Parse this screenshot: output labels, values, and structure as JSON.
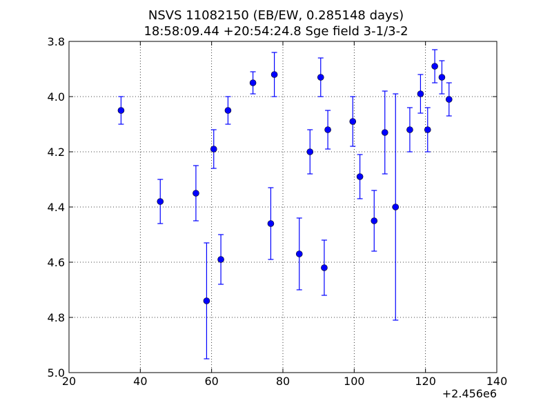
{
  "chart_data": {
    "type": "scatter",
    "title": "NSVS 11082150 (EB/EW, 0.285148 days)",
    "subtitle": "18:58:09.44 +20:54:24.8 Sge field 3-1/3-2",
    "xlabel": "",
    "ylabel": "",
    "x_offset_label": "+2.456e6",
    "xlim": [
      20,
      140
    ],
    "ylim": [
      5.0,
      3.8
    ],
    "y_inverted": true,
    "grid": true,
    "xticks": [
      "20",
      "40",
      "60",
      "80",
      "100",
      "120",
      "140"
    ],
    "yticks": [
      "3.8",
      "4.0",
      "4.2",
      "4.4",
      "4.6",
      "4.8",
      "5.0"
    ],
    "marker_color": "#0000ff",
    "points": [
      {
        "x": 34.6,
        "y": 4.05,
        "err": 0.05
      },
      {
        "x": 45.6,
        "y": 4.38,
        "err": 0.08
      },
      {
        "x": 55.6,
        "y": 4.35,
        "err": 0.1
      },
      {
        "x": 58.6,
        "y": 4.74,
        "err": 0.21
      },
      {
        "x": 60.6,
        "y": 4.19,
        "err": 0.07
      },
      {
        "x": 62.6,
        "y": 4.59,
        "err": 0.09
      },
      {
        "x": 64.6,
        "y": 4.05,
        "err": 0.05
      },
      {
        "x": 71.6,
        "y": 3.95,
        "err": 0.04
      },
      {
        "x": 76.6,
        "y": 4.46,
        "err": 0.13
      },
      {
        "x": 77.6,
        "y": 3.92,
        "err": 0.08
      },
      {
        "x": 84.6,
        "y": 4.57,
        "err": 0.13
      },
      {
        "x": 87.6,
        "y": 4.2,
        "err": 0.08
      },
      {
        "x": 90.6,
        "y": 3.93,
        "err": 0.07
      },
      {
        "x": 91.6,
        "y": 4.62,
        "err": 0.1
      },
      {
        "x": 92.6,
        "y": 4.12,
        "err": 0.07
      },
      {
        "x": 99.6,
        "y": 4.09,
        "err": 0.09
      },
      {
        "x": 101.6,
        "y": 4.29,
        "err": 0.08
      },
      {
        "x": 105.6,
        "y": 4.45,
        "err": 0.11
      },
      {
        "x": 108.6,
        "y": 4.13,
        "err": 0.15
      },
      {
        "x": 111.6,
        "y": 4.4,
        "err": 0.41
      },
      {
        "x": 115.6,
        "y": 4.12,
        "err": 0.08
      },
      {
        "x": 118.6,
        "y": 3.99,
        "err": 0.07
      },
      {
        "x": 120.6,
        "y": 4.12,
        "err": 0.08
      },
      {
        "x": 122.6,
        "y": 3.89,
        "err": 0.06
      },
      {
        "x": 124.6,
        "y": 3.93,
        "err": 0.06
      },
      {
        "x": 126.6,
        "y": 4.01,
        "err": 0.06
      }
    ]
  }
}
